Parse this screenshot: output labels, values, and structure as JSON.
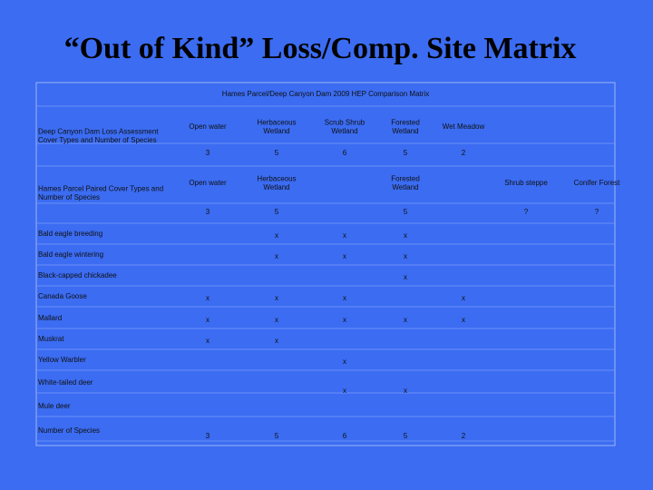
{
  "title": "“Out of Kind” Loss/Comp. Site Matrix",
  "table": {
    "caption": "Hames Parcel/Deep Canyon Dam 2009 HEP Comparison Matrix",
    "loss_header": {
      "label": "Deep Canyon Dam Loss Assessment Cover Types and Number of Species",
      "cells": [
        "Open water",
        "Herbaceous Wetland",
        "Scrub Shrub Wetland",
        "Forested Wetland",
        "Wet Meadow",
        null,
        null
      ],
      "counts": [
        3,
        5,
        6,
        5,
        2,
        null,
        null
      ]
    },
    "paired_header": {
      "label": "Hames Parcel Paired Cover Types and Number of Species",
      "cells": [
        "Open water",
        "Herbaceous Wetland",
        null,
        "Forested Wetland",
        null,
        "Shrub steppe",
        "Conifer Forest"
      ],
      "counts": [
        3,
        5,
        null,
        5,
        null,
        "?",
        "?"
      ]
    },
    "rows": [
      {
        "label": "Bald eagle breeding",
        "cells": [
          null,
          "x",
          "x",
          "x",
          null,
          null,
          null
        ]
      },
      {
        "label": "Bald eagle wintering",
        "cells": [
          null,
          "x",
          "x",
          "x",
          null,
          null,
          null
        ]
      },
      {
        "label": "Black-capped chickadee",
        "cells": [
          null,
          null,
          null,
          "x",
          null,
          null,
          null
        ]
      },
      {
        "label": "Canada Goose",
        "cells": [
          "x",
          "x",
          "x",
          null,
          "x",
          null,
          null
        ]
      },
      {
        "label": "Mallard",
        "cells": [
          "x",
          "x",
          "x",
          "x",
          "x",
          null,
          null
        ]
      },
      {
        "label": "Muskrat",
        "cells": [
          "x",
          "x",
          null,
          null,
          null,
          null,
          null
        ]
      },
      {
        "label": "Yellow Warbler",
        "cells": [
          null,
          null,
          "x",
          null,
          null,
          null,
          null
        ]
      },
      {
        "label": "White-tailed deer",
        "cells": [
          null,
          null,
          "x",
          "x",
          null,
          null,
          null
        ]
      },
      {
        "label": "Mule deer",
        "cells": [
          null,
          null,
          null,
          null,
          null,
          null,
          null
        ]
      },
      {
        "label": "Number of Species",
        "cells": [
          3,
          5,
          6,
          5,
          2,
          null,
          null
        ]
      }
    ]
  }
}
